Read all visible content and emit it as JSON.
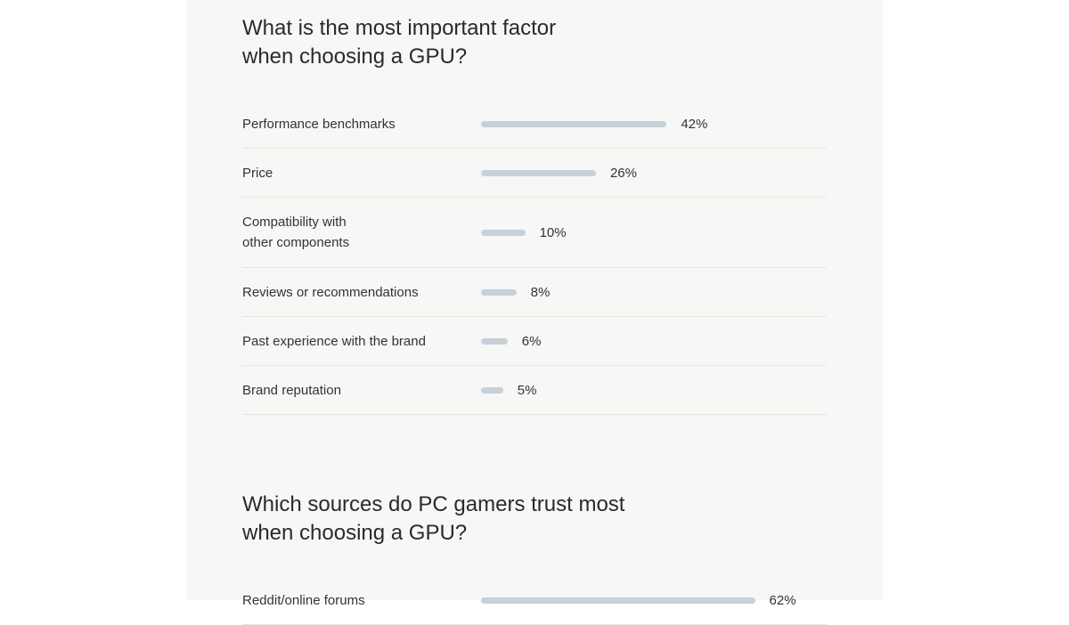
{
  "chart_data": [
    {
      "type": "bar",
      "orientation": "horizontal",
      "title": "What is the most important factor when choosing a GPU?",
      "title_lines": [
        "What is the most important factor",
        "when choosing a GPU?"
      ],
      "categories": [
        "Performance benchmarks",
        "Price",
        "Compatibility with other components",
        "Reviews or recommendations",
        "Past experience with the brand",
        "Brand reputation"
      ],
      "category_lines": [
        [
          "Performance benchmarks"
        ],
        [
          "Price"
        ],
        [
          "Compatibility with",
          "other components"
        ],
        [
          "Reviews or recommendations"
        ],
        [
          "Past experience with the brand"
        ],
        [
          "Brand reputation"
        ]
      ],
      "values": [
        42,
        26,
        10,
        8,
        6,
        5
      ],
      "value_labels": [
        "42%",
        "26%",
        "10%",
        "8%",
        "6%",
        "5%"
      ],
      "unit": "%",
      "bar_color": "#c6d1d9"
    },
    {
      "type": "bar",
      "orientation": "horizontal",
      "title": "Which sources do PC gamers trust most when choosing a GPU?",
      "title_lines": [
        "Which sources do PC gamers trust most",
        "when choosing a GPU?"
      ],
      "categories": [
        "Reddit/online forums"
      ],
      "category_lines": [
        [
          "Reddit/online forums"
        ]
      ],
      "values": [
        62
      ],
      "value_labels": [
        "62%"
      ],
      "unit": "%",
      "bar_color": "#c6d1d9"
    }
  ]
}
